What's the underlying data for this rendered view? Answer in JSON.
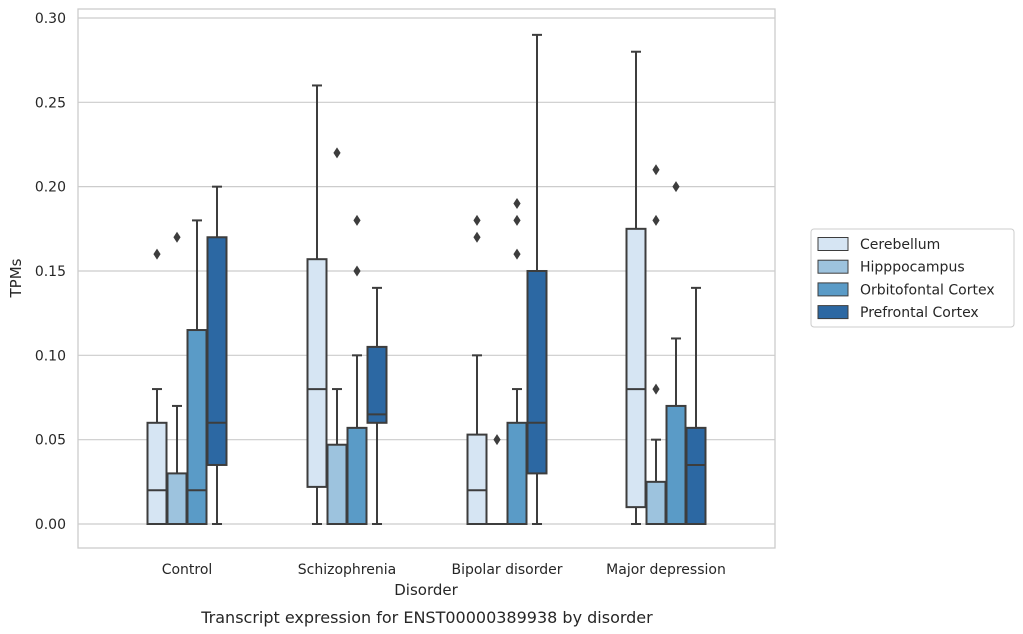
{
  "chart_data": {
    "type": "box",
    "xlabel": "Disorder",
    "ylabel": "TPMs",
    "ylim": [
      -0.014,
      0.305
    ],
    "yticks": [
      "0.00",
      "0.05",
      "0.10",
      "0.15",
      "0.20",
      "0.25",
      "0.30"
    ],
    "grid": "horizontal",
    "legend_position": "right",
    "categories": [
      "Control",
      "Schizophrenia",
      "Bipolar disorder",
      "Major depression"
    ],
    "series": [
      {
        "name": "Cerebellum",
        "color": "#d6e5f3",
        "boxes": [
          {
            "whisker_low": 0.0,
            "q1": 0.0,
            "median": 0.02,
            "q3": 0.06,
            "whisker_high": 0.08,
            "outliers": [
              0.16
            ]
          },
          {
            "whisker_low": 0.0,
            "q1": 0.022,
            "median": 0.08,
            "q3": 0.157,
            "whisker_high": 0.26,
            "outliers": []
          },
          {
            "whisker_low": 0.0,
            "q1": 0.0,
            "median": 0.02,
            "q3": 0.053,
            "whisker_high": 0.1,
            "outliers": [
              0.17,
              0.18
            ]
          },
          {
            "whisker_low": 0.0,
            "q1": 0.01,
            "median": 0.08,
            "q3": 0.175,
            "whisker_high": 0.28,
            "outliers": []
          }
        ]
      },
      {
        "name": "Hipppocampus",
        "color": "#9dc3de",
        "boxes": [
          {
            "whisker_low": 0.0,
            "q1": 0.0,
            "median": 0.0,
            "q3": 0.03,
            "whisker_high": 0.07,
            "outliers": [
              0.17
            ]
          },
          {
            "whisker_low": 0.0,
            "q1": 0.0,
            "median": 0.0,
            "q3": 0.047,
            "whisker_high": 0.08,
            "outliers": [
              0.22
            ]
          },
          {
            "whisker_low": 0.0,
            "q1": 0.0,
            "median": 0.0,
            "q3": 0.0,
            "whisker_high": 0.0,
            "outliers": [
              0.05
            ]
          },
          {
            "whisker_low": 0.0,
            "q1": 0.0,
            "median": 0.0,
            "q3": 0.025,
            "whisker_high": 0.05,
            "outliers": [
              0.08,
              0.18,
              0.21
            ]
          }
        ]
      },
      {
        "name": "Orbitofontal Cortex",
        "color": "#5a9bc7",
        "boxes": [
          {
            "whisker_low": 0.0,
            "q1": 0.0,
            "median": 0.02,
            "q3": 0.115,
            "whisker_high": 0.18,
            "outliers": []
          },
          {
            "whisker_low": 0.0,
            "q1": 0.0,
            "median": 0.0,
            "q3": 0.057,
            "whisker_high": 0.1,
            "outliers": [
              0.15,
              0.18
            ]
          },
          {
            "whisker_low": 0.0,
            "q1": 0.0,
            "median": 0.0,
            "q3": 0.06,
            "whisker_high": 0.08,
            "outliers": [
              0.16,
              0.18,
              0.19
            ]
          },
          {
            "whisker_low": 0.0,
            "q1": 0.0,
            "median": 0.0,
            "q3": 0.07,
            "whisker_high": 0.11,
            "outliers": [
              0.2
            ]
          }
        ]
      },
      {
        "name": "Prefrontal Cortex",
        "color": "#2c68a3",
        "boxes": [
          {
            "whisker_low": 0.0,
            "q1": 0.035,
            "median": 0.06,
            "q3": 0.17,
            "whisker_high": 0.2,
            "outliers": []
          },
          {
            "whisker_low": 0.0,
            "q1": 0.06,
            "median": 0.065,
            "q3": 0.105,
            "whisker_high": 0.14,
            "outliers": []
          },
          {
            "whisker_low": 0.0,
            "q1": 0.03,
            "median": 0.06,
            "q3": 0.15,
            "whisker_high": 0.29,
            "outliers": []
          },
          {
            "whisker_low": 0.0,
            "q1": 0.0,
            "median": 0.035,
            "q3": 0.057,
            "whisker_high": 0.14,
            "outliers": []
          }
        ]
      }
    ]
  },
  "caption": "Transcript expression for ENST00000389938 by disorder"
}
